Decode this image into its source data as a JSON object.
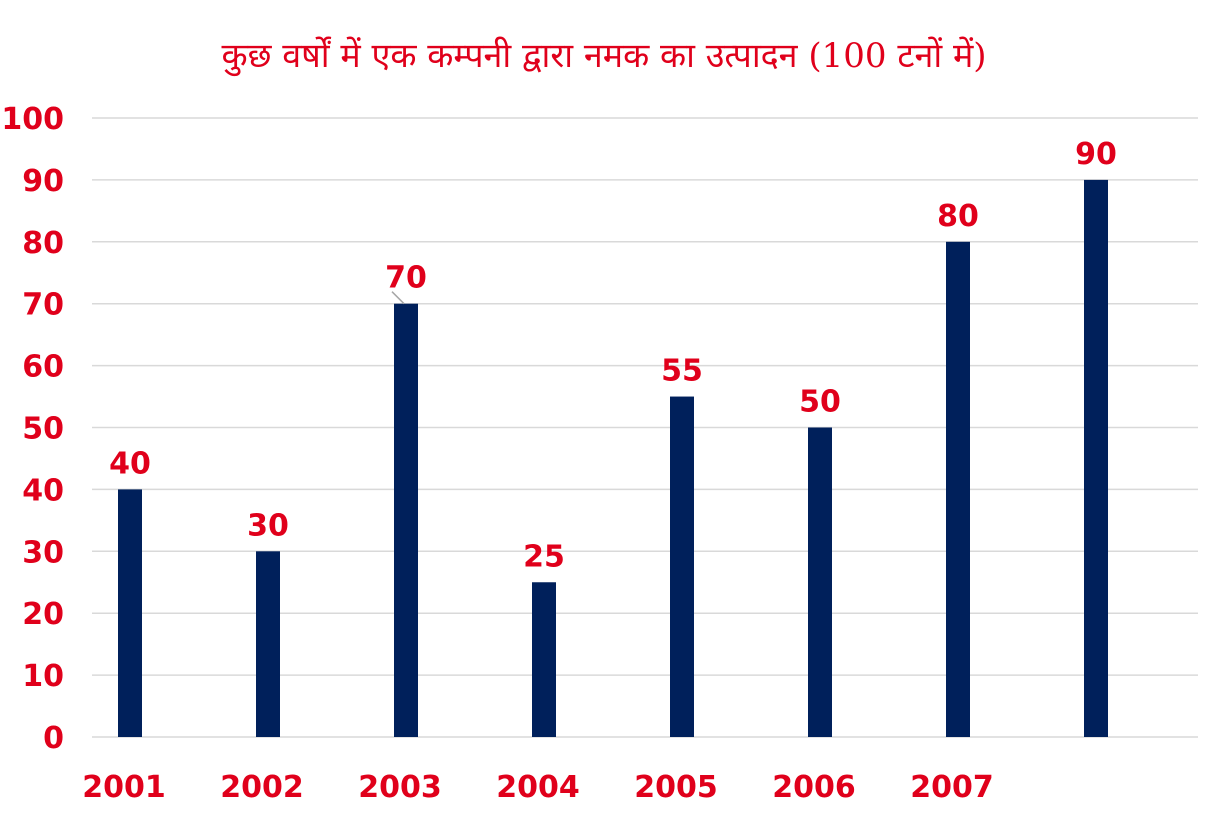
{
  "chart_data": {
    "type": "bar",
    "title": "कुछ वर्षों में एक कम्पनी द्वारा नमक का उत्पादन (100 टनों में)",
    "xlabel": "",
    "ylabel": "",
    "categories": [
      "2001",
      "2002",
      "2003",
      "2004",
      "2005",
      "2006",
      "2007",
      ""
    ],
    "values": [
      40,
      30,
      70,
      25,
      55,
      50,
      80,
      90
    ],
    "ylim": [
      0,
      100
    ],
    "yticks": [
      0,
      10,
      20,
      30,
      40,
      50,
      60,
      70,
      80,
      90,
      100
    ],
    "grid": true,
    "legend": "none",
    "colors": {
      "bar": "#00205b",
      "text": "#e0001b",
      "grid": "#d9d9d9"
    }
  }
}
